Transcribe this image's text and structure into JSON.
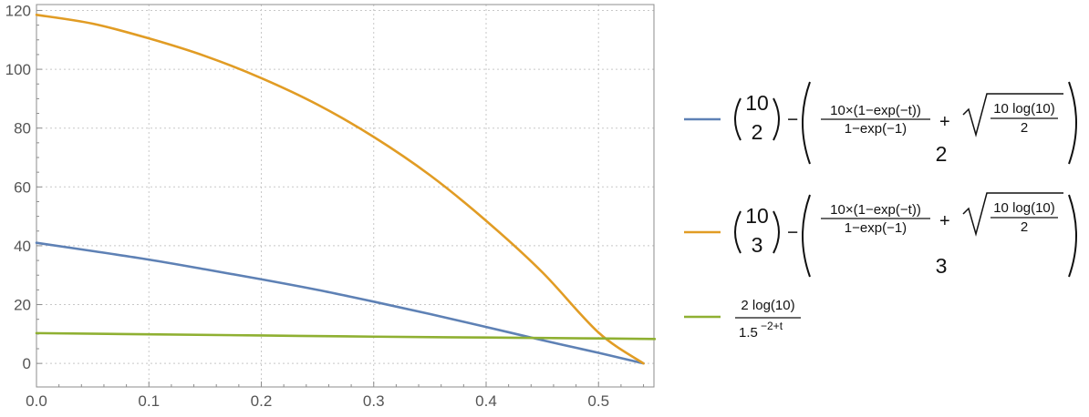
{
  "chart_data": {
    "type": "line",
    "title": "",
    "xlabel": "",
    "ylabel": "",
    "xlim": [
      0,
      0.5493
    ],
    "ylim": [
      -8,
      122
    ],
    "x_ticks": [
      0.0,
      0.1,
      0.2,
      0.3,
      0.4,
      0.5
    ],
    "x_tick_labels": [
      "0.0",
      "0.1",
      "0.2",
      "0.3",
      "0.4",
      "0.5"
    ],
    "y_ticks": [
      0,
      20,
      40,
      60,
      80,
      100,
      120
    ],
    "y_tick_labels": [
      "0",
      "20",
      "40",
      "60",
      "80",
      "100",
      "120"
    ],
    "grid": true,
    "legend_position": "right",
    "series": [
      {
        "color": "#5e81b5",
        "x": [
          0.0,
          0.05,
          0.1,
          0.15,
          0.2,
          0.25,
          0.3,
          0.35,
          0.4,
          0.45,
          0.5,
          0.54
        ],
        "y": [
          41,
          38.2,
          35.3,
          32.0,
          28.6,
          25.0,
          21.0,
          16.8,
          12.4,
          7.9,
          3.6,
          0.0
        ]
      },
      {
        "color": "#e19c24",
        "x": [
          0.0,
          0.05,
          0.1,
          0.15,
          0.2,
          0.25,
          0.3,
          0.35,
          0.4,
          0.45,
          0.5,
          0.54
        ],
        "y": [
          118.5,
          115.5,
          110.5,
          104.5,
          97.0,
          88.0,
          77.0,
          64.0,
          48.5,
          31.0,
          10.5,
          0.0
        ]
      },
      {
        "color": "#8fb032",
        "x": [
          0.0,
          0.1,
          0.2,
          0.3,
          0.4,
          0.5,
          0.55
        ],
        "y": [
          10.3,
          9.9,
          9.5,
          9.1,
          8.8,
          8.5,
          8.3
        ]
      }
    ],
    "legend": [
      {
        "color": "#5e81b5",
        "binom_n": "10",
        "binom_k": "2",
        "minus": "−",
        "frac_num": "10×(1−exp(−t))",
        "frac_den": "1−exp(−1)",
        "plus": "+",
        "root_num": "10 log(10)",
        "root_den": "2",
        "divisor": "2"
      },
      {
        "color": "#e19c24",
        "binom_n": "10",
        "binom_k": "3",
        "minus": "−",
        "frac_num": "10×(1−exp(−t))",
        "frac_den": "1−exp(−1)",
        "plus": "+",
        "root_num": "10 log(10)",
        "root_den": "2",
        "divisor": "3"
      },
      {
        "color": "#8fb032",
        "frac_num": "2 log(10)",
        "den_base": "1.5",
        "den_exp": "−2+t"
      }
    ]
  }
}
